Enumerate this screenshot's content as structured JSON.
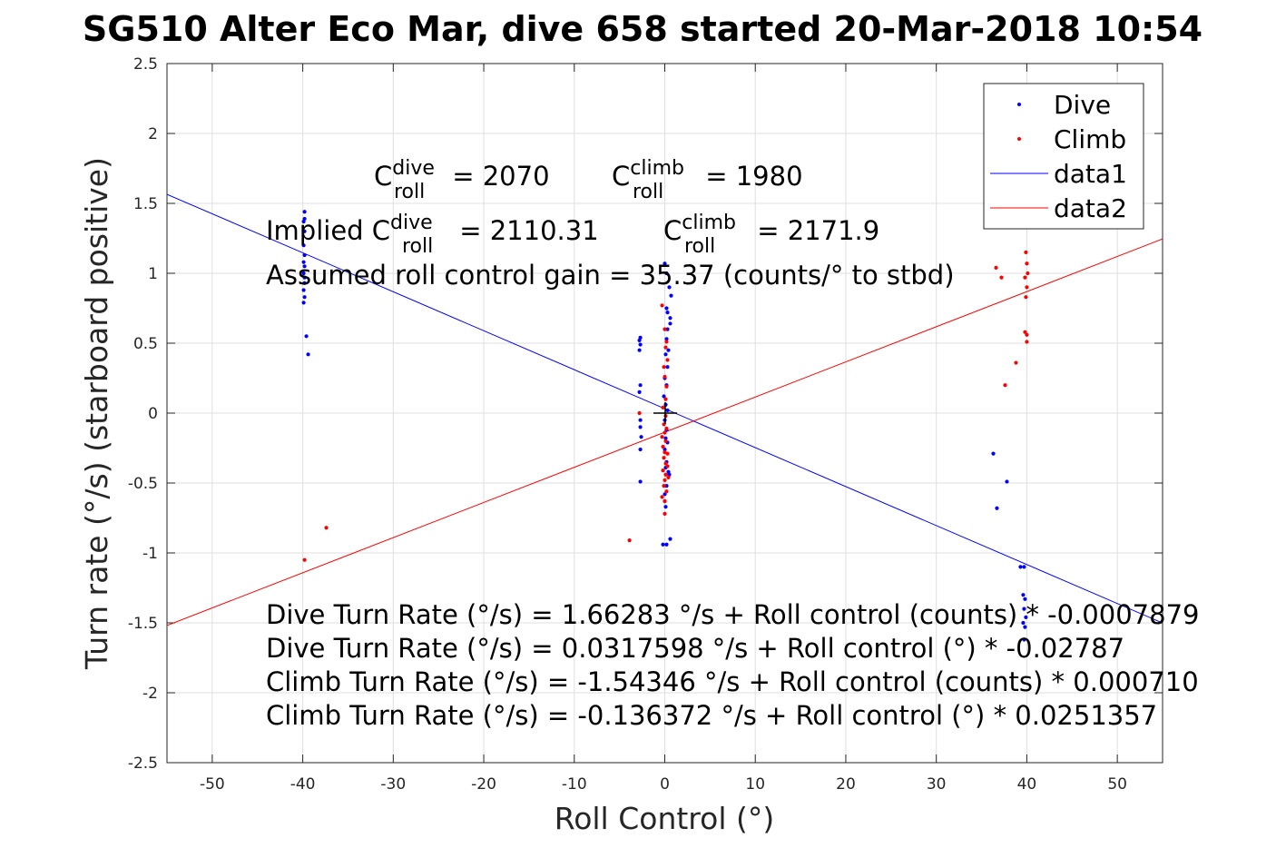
{
  "chart_data": {
    "type": "scatter",
    "title": "SG510 Alter Eco Mar, dive 658 started 20-Mar-2018 10:54",
    "xlabel": "Roll Control (°)",
    "ylabel": "Turn rate (°/s) (starboard positive)",
    "xlim": [
      -55,
      55
    ],
    "ylim": [
      -2.5,
      2.5
    ],
    "x_ticks": [
      -50,
      -40,
      -30,
      -20,
      -10,
      0,
      10,
      20,
      30,
      40,
      50
    ],
    "x_tick_labels": [
      "-50",
      "-40",
      "-30",
      "-20",
      "-10",
      "0",
      "10",
      "20",
      "30",
      "40",
      "50"
    ],
    "y_ticks": [
      -2.5,
      -2,
      -1.5,
      -1,
      -0.5,
      0,
      0.5,
      1,
      1.5,
      2,
      2.5
    ],
    "y_tick_labels": [
      "-2.5",
      "-2",
      "-1.5",
      "-1",
      "-0.5",
      "0",
      "0.5",
      "1",
      "1.5",
      "2",
      "2.5"
    ],
    "grid": true,
    "legend_position": "top-right",
    "colors": {
      "dive": "#0000ff",
      "climb": "#ff0000",
      "center_marker": "#000000"
    },
    "series": [
      {
        "name": "Dive",
        "kind": "points",
        "color": "#0000ff",
        "points": [
          [
            -39.8,
            1.44
          ],
          [
            -39.8,
            1.39
          ],
          [
            -39.9,
            1.37
          ],
          [
            -39.8,
            1.3
          ],
          [
            -39.9,
            1.2
          ],
          [
            -39.8,
            1.13
          ],
          [
            -39.9,
            1.08
          ],
          [
            -39.8,
            1.05
          ],
          [
            -39.9,
            1.0
          ],
          [
            -39.8,
            0.97
          ],
          [
            -39.8,
            0.93
          ],
          [
            -39.9,
            0.88
          ],
          [
            -39.8,
            0.83
          ],
          [
            -39.9,
            0.79
          ],
          [
            -39.6,
            0.55
          ],
          [
            -39.4,
            0.42
          ],
          [
            -2.7,
            0.54
          ],
          [
            -2.8,
            0.52
          ],
          [
            -2.7,
            0.49
          ],
          [
            -2.8,
            0.45
          ],
          [
            -2.7,
            0.2
          ],
          [
            -2.8,
            0.15
          ],
          [
            -2.7,
            -0.05
          ],
          [
            -2.7,
            -0.1
          ],
          [
            -2.6,
            -0.17
          ],
          [
            -2.7,
            -0.26
          ],
          [
            -2.7,
            -0.49
          ],
          [
            0.0,
            1.07
          ],
          [
            0.2,
            1.0
          ],
          [
            0.5,
            0.9
          ],
          [
            0.7,
            0.84
          ],
          [
            0.2,
            0.75
          ],
          [
            0.3,
            0.72
          ],
          [
            0.6,
            0.68
          ],
          [
            0.6,
            0.64
          ],
          [
            0.3,
            0.6
          ],
          [
            0.2,
            0.53
          ],
          [
            0.4,
            0.45
          ],
          [
            0.1,
            0.42
          ],
          [
            0.3,
            0.33
          ],
          [
            0.0,
            0.25
          ],
          [
            0.2,
            0.2
          ],
          [
            -0.1,
            0.12
          ],
          [
            0.1,
            0.06
          ],
          [
            0.3,
            0.02
          ],
          [
            0.0,
            -0.05
          ],
          [
            0.2,
            -0.12
          ],
          [
            0.1,
            -0.18
          ],
          [
            0.3,
            -0.21
          ],
          [
            0.0,
            -0.26
          ],
          [
            0.2,
            -0.35
          ],
          [
            0.1,
            -0.39
          ],
          [
            0.4,
            -0.42
          ],
          [
            0.5,
            -0.44
          ],
          [
            0.2,
            -0.52
          ],
          [
            0.0,
            -0.58
          ],
          [
            0.0,
            -0.63
          ],
          [
            0.1,
            -0.67
          ],
          [
            -0.2,
            -0.94
          ],
          [
            0.2,
            -0.94
          ],
          [
            0.6,
            -0.9
          ],
          [
            36.3,
            -0.29
          ],
          [
            37.8,
            -0.49
          ],
          [
            36.7,
            -0.68
          ],
          [
            39.3,
            -1.1
          ],
          [
            39.7,
            -1.1
          ],
          [
            39.6,
            -1.3
          ],
          [
            39.8,
            -1.33
          ],
          [
            39.7,
            -1.4
          ],
          [
            39.9,
            -1.46
          ],
          [
            39.6,
            -1.5
          ],
          [
            39.8,
            -1.53
          ],
          [
            39.7,
            -1.62
          ]
        ]
      },
      {
        "name": "Climb",
        "kind": "points",
        "color": "#ff0000",
        "points": [
          [
            -39.8,
            -1.05
          ],
          [
            -37.4,
            -0.82
          ],
          [
            -3.9,
            -0.91
          ],
          [
            -2.8,
            0.0
          ],
          [
            -0.3,
            0.77
          ],
          [
            0.0,
            0.6
          ],
          [
            0.2,
            0.51
          ],
          [
            0.1,
            0.47
          ],
          [
            0.3,
            0.38
          ],
          [
            -0.1,
            0.33
          ],
          [
            0.0,
            0.26
          ],
          [
            0.2,
            0.19
          ],
          [
            0.1,
            0.1
          ],
          [
            -0.2,
            0.04
          ],
          [
            0.1,
            -0.02
          ],
          [
            -0.1,
            -0.08
          ],
          [
            0.2,
            -0.11
          ],
          [
            0.0,
            -0.14
          ],
          [
            -0.3,
            -0.17
          ],
          [
            0.1,
            -0.2
          ],
          [
            -0.2,
            -0.24
          ],
          [
            0.0,
            -0.28
          ],
          [
            0.3,
            -0.29
          ],
          [
            -0.1,
            -0.32
          ],
          [
            0.1,
            -0.36
          ],
          [
            0.3,
            -0.38
          ],
          [
            -0.2,
            -0.41
          ],
          [
            0.1,
            -0.44
          ],
          [
            0.4,
            -0.46
          ],
          [
            0.0,
            -0.48
          ],
          [
            -0.1,
            -0.52
          ],
          [
            0.2,
            -0.56
          ],
          [
            -0.3,
            -0.6
          ],
          [
            0.0,
            -0.63
          ],
          [
            0.0,
            -0.72
          ],
          [
            36.6,
            1.04
          ],
          [
            37.2,
            0.97
          ],
          [
            39.9,
            1.15
          ],
          [
            40.0,
            1.07
          ],
          [
            40.1,
            1.0
          ],
          [
            39.8,
            0.97
          ],
          [
            40.0,
            0.9
          ],
          [
            39.9,
            0.83
          ],
          [
            39.8,
            0.58
          ],
          [
            40.0,
            0.56
          ],
          [
            40.0,
            0.51
          ],
          [
            38.8,
            0.36
          ],
          [
            37.6,
            0.2
          ]
        ]
      },
      {
        "name": "data1",
        "kind": "line",
        "color": "#0000ff",
        "intercept": 0.0317598,
        "slope": -0.02787
      },
      {
        "name": "data2",
        "kind": "line",
        "color": "#ff0000",
        "intercept": -0.136372,
        "slope": 0.0251357
      }
    ],
    "center_marker": [
      0,
      0
    ],
    "annotations": {
      "c_dive_base": "C",
      "c_dive_sup": "dive",
      "c_dive_sub": "roll",
      "c_dive_value": " = 2070",
      "c_climb_base": "C",
      "c_climb_sup": "climb",
      "c_climb_sub": "roll",
      "c_climb_value": " = 1980",
      "implied_prefix": "Implied C",
      "implied_dive_sup": "dive",
      "implied_dive_sub": "roll",
      "implied_dive_value": " = 2110.31",
      "implied_climb_base": "C",
      "implied_climb_sup": "climb",
      "implied_climb_sub": "roll",
      "implied_climb_value": " = 2171.9",
      "gain": "Assumed roll control gain = 35.37 (counts/° to stbd)",
      "eq_dive_counts": "Dive Turn Rate (°/s) = 1.66283 °/s + Roll control (counts) * -0.0007879",
      "eq_dive_deg": "Dive Turn Rate (°/s) = 0.0317598 °/s + Roll control (°) * -0.02787",
      "eq_climb_counts": "Climb Turn Rate (°/s) = -1.54346 °/s + Roll control (counts) * 0.000710",
      "eq_climb_deg": "Climb Turn Rate (°/s) = -0.136372 °/s + Roll control (°) * 0.0251357"
    }
  }
}
